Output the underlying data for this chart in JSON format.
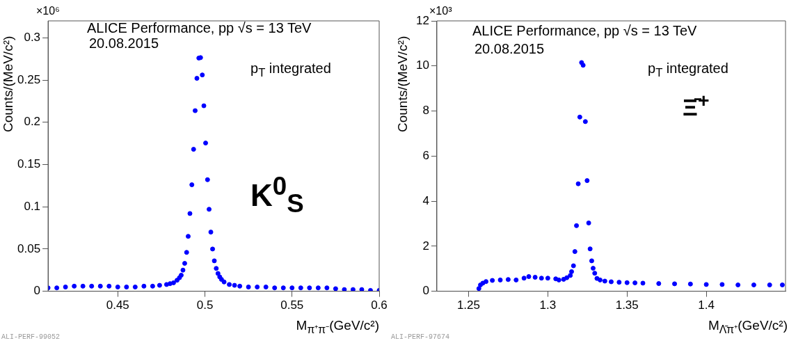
{
  "chart_data": [
    {
      "type": "scatter",
      "xlabel": "M$_{π⁺π⁻}$(GeV/c²)",
      "ylabel": "Counts/(MeV/c²)",
      "xlim": [
        0.41,
        0.6
      ],
      "ylim": [
        0,
        0.32
      ],
      "xticks": [
        0.45,
        0.5,
        0.55,
        0.6
      ],
      "yticks": [
        0,
        0.05,
        0.1,
        0.15,
        0.2,
        0.25,
        0.3
      ],
      "grid": false,
      "legend": false,
      "marker": "circle",
      "annotations": [
        "×10⁶",
        "ALICE Performance, pp √s = 13 TeV",
        "20.08.2015",
        "p$_{T}$ integrated",
        "K$^{0}$$_{S}$",
        "ALI-PERF-99052"
      ],
      "series": [
        {
          "color": "#0000ff",
          "x": [
            0.41,
            0.415,
            0.42,
            0.425,
            0.43,
            0.435,
            0.44,
            0.445,
            0.45,
            0.455,
            0.46,
            0.465,
            0.47,
            0.474,
            0.478,
            0.48,
            0.482,
            0.484,
            0.4854,
            0.4864,
            0.4874,
            0.4884,
            0.4895,
            0.4904,
            0.4914,
            0.4925,
            0.4935,
            0.4944,
            0.4954,
            0.4965,
            0.4975,
            0.4985,
            0.4994,
            0.5004,
            0.5015,
            0.5024,
            0.5034,
            0.5044,
            0.5054,
            0.5065,
            0.5075,
            0.5085,
            0.5095,
            0.511,
            0.514,
            0.517,
            0.52,
            0.525,
            0.53,
            0.535,
            0.54,
            0.545,
            0.55,
            0.555,
            0.56,
            0.565,
            0.57,
            0.575,
            0.58,
            0.585,
            0.59,
            0.595,
            0.6
          ],
          "values": [
            0.004,
            0.004,
            0.005,
            0.006,
            0.006,
            0.006,
            0.006,
            0.006,
            0.005,
            0.005,
            0.005,
            0.006,
            0.006,
            0.007,
            0.008,
            0.009,
            0.01,
            0.013,
            0.016,
            0.019,
            0.025,
            0.033,
            0.046,
            0.065,
            0.092,
            0.126,
            0.168,
            0.2137,
            0.252,
            0.276,
            0.2765,
            0.256,
            0.2195,
            0.1754,
            0.132,
            0.097,
            0.07,
            0.05,
            0.036,
            0.027,
            0.021,
            0.017,
            0.014,
            0.011,
            0.008,
            0.007,
            0.006,
            0.005,
            0.005,
            0.005,
            0.004,
            0.004,
            0.004,
            0.004,
            0.004,
            0.004,
            0.004,
            0.003,
            0.002,
            0.002,
            0.002,
            0.001,
            0.001
          ]
        }
      ]
    },
    {
      "type": "scatter",
      "xlabel": "M$_{Λ̄π⁺}$(GeV/c²)",
      "ylabel": "Counts/(MeV/c²)",
      "xlim": [
        1.23,
        1.45
      ],
      "ylim": [
        0,
        12
      ],
      "xticks": [
        1.25,
        1.3,
        1.35,
        1.4
      ],
      "yticks": [
        0,
        2,
        4,
        6,
        8,
        10,
        12
      ],
      "grid": false,
      "legend": false,
      "marker": "circle",
      "annotations": [
        "×10³",
        "ALICE Performance, pp √s = 13 TeV",
        "20.08.2015",
        "p$_{T}$ integrated",
        "Ξ̄$^{+}$",
        "ALI-PERF-97674"
      ],
      "series": [
        {
          "color": "#0000ff",
          "x": [
            1.2565,
            1.2575,
            1.259,
            1.261,
            1.265,
            1.27,
            1.275,
            1.28,
            1.285,
            1.288,
            1.292,
            1.296,
            1.3,
            1.305,
            1.307,
            1.31,
            1.312,
            1.3142,
            1.315,
            1.3162,
            1.3171,
            1.3181,
            1.3192,
            1.3202,
            1.3213,
            1.3223,
            1.3237,
            1.3248,
            1.3258,
            1.3267,
            1.3277,
            1.3286,
            1.3296,
            1.331,
            1.333,
            1.336,
            1.34,
            1.345,
            1.35,
            1.355,
            1.36,
            1.37,
            1.38,
            1.39,
            1.4,
            1.41,
            1.42,
            1.43,
            1.44,
            1.448
          ],
          "values": [
            0.12,
            0.28,
            0.36,
            0.43,
            0.48,
            0.5,
            0.52,
            0.5,
            0.58,
            0.65,
            0.62,
            0.58,
            0.58,
            0.55,
            0.5,
            0.53,
            0.6,
            0.7,
            0.87,
            1.13,
            1.76,
            2.91,
            4.77,
            7.73,
            10.15,
            10.03,
            7.53,
            4.91,
            3.03,
            1.88,
            1.35,
            1.02,
            0.8,
            0.57,
            0.5,
            0.45,
            0.42,
            0.4,
            0.38,
            0.37,
            0.36,
            0.34,
            0.33,
            0.32,
            0.3,
            0.3,
            0.28,
            0.28,
            0.28,
            0.28
          ]
        }
      ]
    }
  ]
}
